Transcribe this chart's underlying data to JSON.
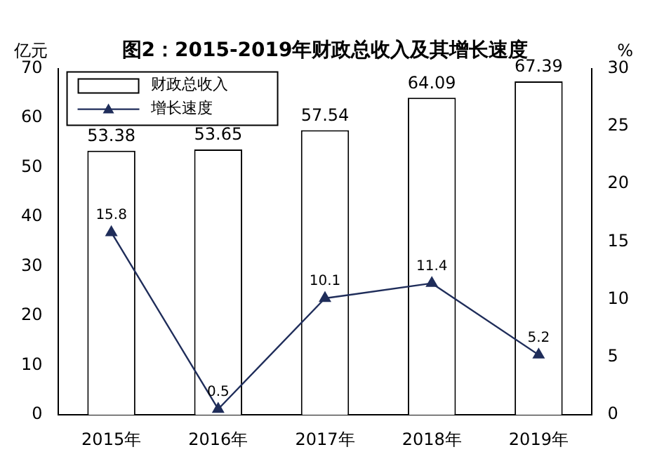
{
  "chart_data": {
    "type": "bar",
    "title": "图2：2015-2019年财政总收入及其增长速度",
    "ylabel": "亿元",
    "y2label": "%",
    "categories": [
      "2015年",
      "2016年",
      "2017年",
      "2018年",
      "2019年"
    ],
    "series": [
      {
        "name": "财政总收入",
        "type": "bar",
        "color": "#ffffff",
        "values": [
          53.38,
          53.65,
          57.54,
          64.09,
          67.39
        ]
      },
      {
        "name": "增长速度",
        "type": "line",
        "axis": "y2",
        "color": "#1f2d5a",
        "marker": "triangle",
        "values": [
          15.8,
          0.5,
          10.1,
          11.4,
          5.2
        ]
      }
    ],
    "ylim": [
      0,
      70
    ],
    "yticks": [
      0,
      10,
      20,
      30,
      40,
      50,
      60,
      70
    ],
    "y2lim": [
      0,
      30
    ],
    "y2ticks": [
      0,
      5,
      10,
      15,
      20,
      25,
      30
    ],
    "grid": false,
    "legend": "top left",
    "data_labels": true
  }
}
